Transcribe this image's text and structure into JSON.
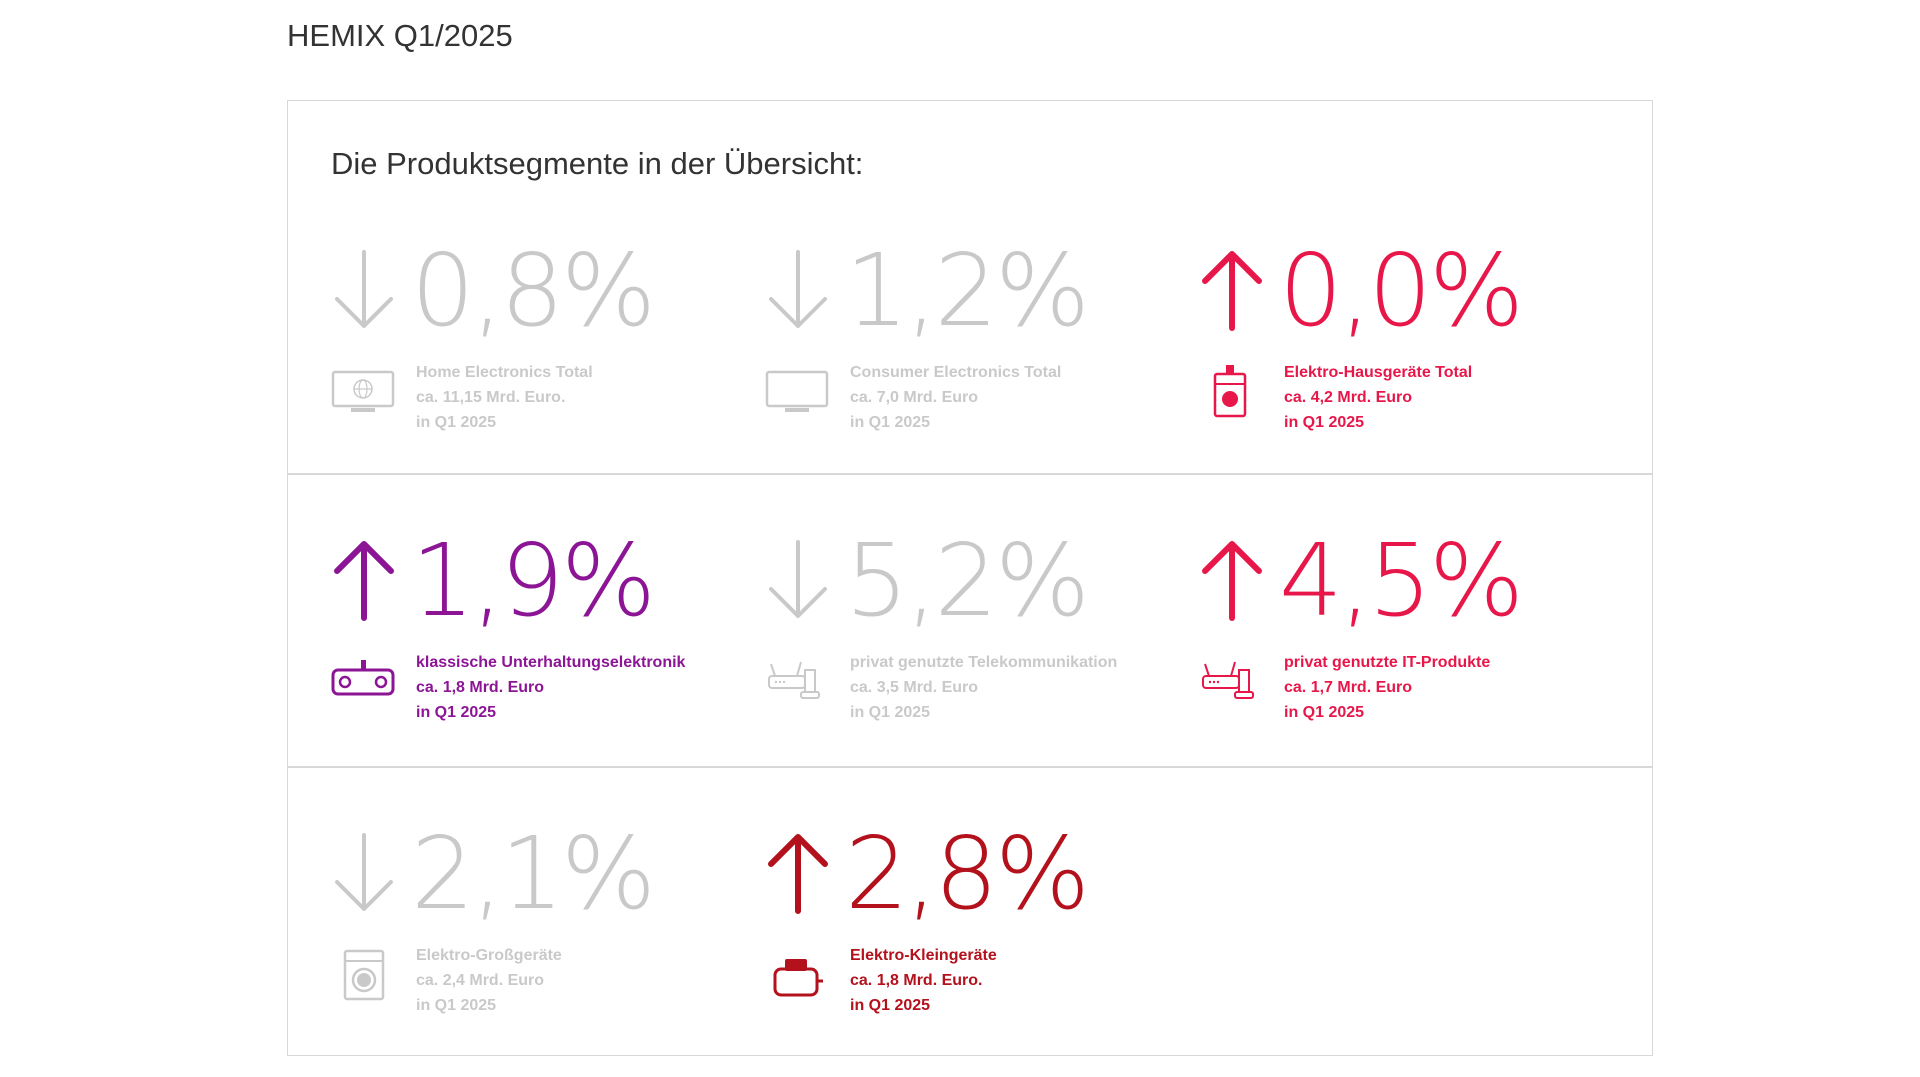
{
  "page_title": "HEMIX Q1/2025",
  "subtitle": "Die Produktsegmente in der Übersicht:",
  "colors": {
    "gray": "#c9c9c9",
    "red": "#e8174a",
    "purple": "#8c1596",
    "darkred": "#b3111c"
  },
  "segments": [
    {
      "direction": "down",
      "value": "0,8%",
      "name": "Home Electronics Total",
      "amount": "ca. 11,15 Mrd. Euro.",
      "period": "in Q1 2025",
      "color": "#c9c9c9",
      "icon": "tv-globe-icon"
    },
    {
      "direction": "down",
      "value": "1,2%",
      "name": "Consumer Electronics Total",
      "amount": "ca. 7,0 Mrd. Euro",
      "period": "in Q1 2025",
      "color": "#c9c9c9",
      "icon": "tv-icon"
    },
    {
      "direction": "up",
      "value": "0,0%",
      "name": "Elektro-Hausgeräte Total",
      "amount": "ca. 4,2 Mrd. Euro",
      "period": "in Q1 2025",
      "color": "#e8174a",
      "icon": "appliance-icon"
    },
    {
      "direction": "up",
      "value": "1,9%",
      "name": "klassische Unterhaltungselektronik",
      "amount": "ca. 1,8 Mrd. Euro",
      "period": "in Q1 2025",
      "color": "#8c1596",
      "icon": "radio-icon"
    },
    {
      "direction": "down",
      "value": "5,2%",
      "name": "privat genutzte Telekommunikation",
      "amount": "ca. 3,5 Mrd. Euro",
      "period": "in Q1 2025",
      "color": "#c9c9c9",
      "icon": "router-phone-icon"
    },
    {
      "direction": "up",
      "value": "4,5%",
      "name": "privat genutzte IT-Produkte",
      "amount": "ca. 1,7 Mrd. Euro",
      "period": "in Q1 2025",
      "color": "#e8174a",
      "icon": "router-phone-icon"
    },
    {
      "direction": "down",
      "value": "2,1%",
      "name": "Elektro-Großgeräte",
      "amount": "ca. 2,4 Mrd. Euro",
      "period": "in Q1 2025",
      "color": "#c9c9c9",
      "icon": "washing-machine-icon"
    },
    {
      "direction": "up",
      "value": "2,8%",
      "name": "Elektro-Kleingeräte",
      "amount": "ca. 1,8 Mrd. Euro.",
      "period": "in Q1 2025",
      "color": "#b3111c",
      "icon": "toaster-icon"
    }
  ]
}
